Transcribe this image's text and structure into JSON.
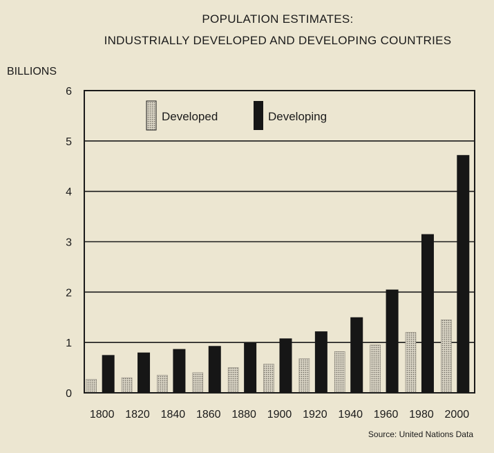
{
  "colors": {
    "background": "#ece6d1",
    "developed_fill": "#c8c3b4",
    "developing_fill": "#161616",
    "axis": "#1a1a1a"
  },
  "chart_data": {
    "type": "bar",
    "title": "POPULATION ESTIMATES:",
    "subtitle": "INDUSTRIALLY DEVELOPED AND DEVELOPING COUNTRIES",
    "ylabel": "BILLIONS",
    "xlabel": "",
    "ylim": [
      0,
      6
    ],
    "yticks": [
      "0",
      "1",
      "2",
      "3",
      "4",
      "5",
      "6"
    ],
    "grid": true,
    "legend_position": "top-left",
    "categories": [
      "1800",
      "1820",
      "1840",
      "1860",
      "1880",
      "1900",
      "1920",
      "1940",
      "1960",
      "1980",
      "2000"
    ],
    "series": [
      {
        "name": "Developed",
        "values": [
          0.27,
          0.3,
          0.35,
          0.4,
          0.5,
          0.57,
          0.68,
          0.82,
          0.95,
          1.2,
          1.45
        ]
      },
      {
        "name": "Developing",
        "values": [
          0.75,
          0.8,
          0.87,
          0.93,
          1.0,
          1.08,
          1.22,
          1.5,
          2.05,
          3.15,
          4.72
        ]
      }
    ],
    "source": "Source: United Nations Data"
  }
}
